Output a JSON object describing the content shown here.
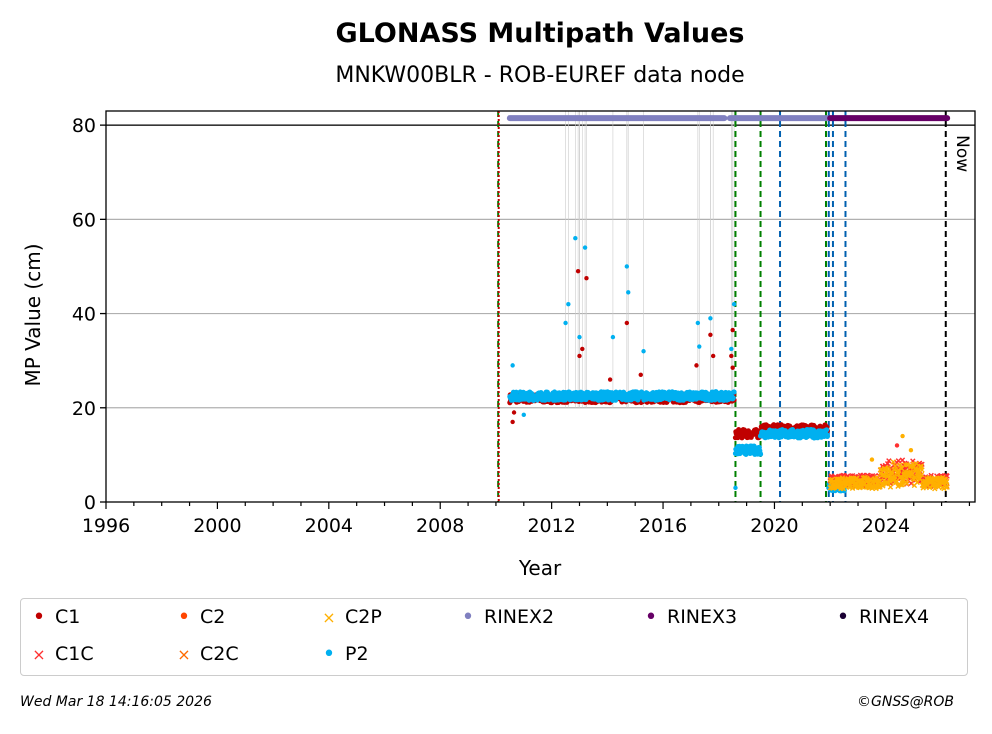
{
  "chart_data": {
    "type": "scatter",
    "title": "GLONASS Multipath Values",
    "subtitle": "MNKW00BLR - ROB-EUREF data node",
    "xlabel": "Year",
    "ylabel": "MP Value (cm)",
    "xlim": [
      1996,
      2027.2
    ],
    "ylim": [
      0,
      83
    ],
    "x_ticks": [
      "1996",
      "2000",
      "2004",
      "2008",
      "2012",
      "2016",
      "2020",
      "2024"
    ],
    "y_ticks": [
      "0",
      "20",
      "40",
      "60",
      "80"
    ],
    "grid": "horizontal",
    "now_label": "Now",
    "now_year": 2026.2,
    "colors": {
      "C1": "#c00000",
      "C1C": "#ff3030",
      "C2": "#ff4500",
      "C2C": "#ff6a00",
      "C2P": "#ffb000",
      "P2": "#00b0f0",
      "RINEX2": "#8080c0",
      "RINEX3": "#660066",
      "RINEX4": "#1a0033",
      "green_line": "#008000",
      "blue_line": "#0060b0",
      "red_line": "#c00000",
      "grid": "#b0b0b0"
    },
    "format_bars": [
      {
        "format": "RINEX2",
        "start": 2010.5,
        "end": 2018.2
      },
      {
        "format": "RINEX2",
        "start": 2018.4,
        "end": 2021.9
      },
      {
        "format": "RINEX3",
        "start": 2022.0,
        "end": 2026.2
      }
    ],
    "vertical_lines": [
      {
        "x": 2010.08,
        "style": "green"
      },
      {
        "x": 2010.1,
        "style": "red"
      },
      {
        "x": 2018.6,
        "style": "green"
      },
      {
        "x": 2019.5,
        "style": "green"
      },
      {
        "x": 2020.2,
        "style": "blue"
      },
      {
        "x": 2021.85,
        "style": "green"
      },
      {
        "x": 2021.95,
        "style": "blue"
      },
      {
        "x": 2022.1,
        "style": "blue"
      },
      {
        "x": 2022.55,
        "style": "blue"
      },
      {
        "x": 2026.15,
        "style": "now"
      }
    ],
    "series": [
      {
        "name": "C1",
        "segments": [
          {
            "start": 2010.5,
            "end": 2018.55,
            "value": 22
          },
          {
            "start": 2018.6,
            "end": 2019.5,
            "value": 14.5
          },
          {
            "start": 2019.5,
            "end": 2021.9,
            "value": 15.5
          }
        ]
      },
      {
        "name": "P2",
        "segments": [
          {
            "start": 2010.5,
            "end": 2018.55,
            "value": 22.5
          },
          {
            "start": 2018.6,
            "end": 2019.5,
            "value": 11
          },
          {
            "start": 2019.5,
            "end": 2021.9,
            "value": 14.5
          },
          {
            "start": 2021.95,
            "end": 2022.55,
            "value": 3
          }
        ]
      },
      {
        "name": "C1C",
        "segments": [
          {
            "start": 2022.0,
            "end": 2026.2,
            "value": 4.5
          }
        ]
      },
      {
        "name": "C2P",
        "segments": [
          {
            "start": 2022.0,
            "end": 2026.2,
            "value": 4
          }
        ]
      }
    ],
    "outliers": [
      {
        "series": "P2",
        "x": 2012.85,
        "y": 56
      },
      {
        "series": "P2",
        "x": 2013.2,
        "y": 54
      },
      {
        "series": "C1",
        "x": 2012.95,
        "y": 49
      },
      {
        "series": "C1",
        "x": 2013.25,
        "y": 47.5
      },
      {
        "series": "P2",
        "x": 2014.7,
        "y": 50
      },
      {
        "series": "P2",
        "x": 2014.75,
        "y": 44.5
      },
      {
        "series": "P2",
        "x": 2012.6,
        "y": 42
      },
      {
        "series": "C1",
        "x": 2014.7,
        "y": 38
      },
      {
        "series": "P2",
        "x": 2012.5,
        "y": 38
      },
      {
        "series": "P2",
        "x": 2013.0,
        "y": 35
      },
      {
        "series": "C1",
        "x": 2013.0,
        "y": 31
      },
      {
        "series": "C1",
        "x": 2013.1,
        "y": 32.5
      },
      {
        "series": "P2",
        "x": 2014.2,
        "y": 35
      },
      {
        "series": "C1",
        "x": 2014.1,
        "y": 26
      },
      {
        "series": "P2",
        "x": 2015.3,
        "y": 32
      },
      {
        "series": "C1",
        "x": 2015.2,
        "y": 27
      },
      {
        "series": "P2",
        "x": 2017.25,
        "y": 38
      },
      {
        "series": "P2",
        "x": 2017.7,
        "y": 39
      },
      {
        "series": "C1",
        "x": 2017.7,
        "y": 35.5
      },
      {
        "series": "C1",
        "x": 2017.8,
        "y": 31
      },
      {
        "series": "P2",
        "x": 2017.3,
        "y": 33
      },
      {
        "series": "C1",
        "x": 2017.2,
        "y": 29
      },
      {
        "series": "P2",
        "x": 2018.55,
        "y": 42
      },
      {
        "series": "C1",
        "x": 2018.5,
        "y": 36.5
      },
      {
        "series": "C1",
        "x": 2018.45,
        "y": 31
      },
      {
        "series": "P2",
        "x": 2018.45,
        "y": 32.5
      },
      {
        "series": "C1",
        "x": 2018.5,
        "y": 28.5
      },
      {
        "series": "P2",
        "x": 2018.6,
        "y": 3
      },
      {
        "series": "C1",
        "x": 2010.6,
        "y": 17
      },
      {
        "series": "C1",
        "x": 2010.65,
        "y": 19
      },
      {
        "series": "P2",
        "x": 2010.6,
        "y": 29
      },
      {
        "series": "P2",
        "x": 2011.0,
        "y": 18.5
      },
      {
        "series": "C2P",
        "x": 2024.6,
        "y": 14
      },
      {
        "series": "C1C",
        "x": 2024.4,
        "y": 12
      },
      {
        "series": "C2P",
        "x": 2023.5,
        "y": 9
      },
      {
        "series": "C2P",
        "x": 2024.9,
        "y": 11
      }
    ]
  },
  "legend": [
    {
      "key": "C1",
      "label": "C1",
      "marker": "•",
      "color": "#c00000"
    },
    {
      "key": "C2",
      "label": "C2",
      "marker": "•",
      "color": "#ff4500"
    },
    {
      "key": "C2P",
      "label": "C2P",
      "marker": "×",
      "color": "#ffb000"
    },
    {
      "key": "RINEX2",
      "label": "RINEX2",
      "marker": "•",
      "color": "#8080c0"
    },
    {
      "key": "RINEX3",
      "label": "RINEX3",
      "marker": "•",
      "color": "#660066"
    },
    {
      "key": "RINEX4",
      "label": "RINEX4",
      "marker": "•",
      "color": "#1a0033"
    },
    {
      "key": "C1C",
      "label": "C1C",
      "marker": "×",
      "color": "#ff3030"
    },
    {
      "key": "C2C",
      "label": "C2C",
      "marker": "×",
      "color": "#ff6a00"
    },
    {
      "key": "P2",
      "label": "P2",
      "marker": "•",
      "color": "#00b0f0"
    }
  ],
  "footer": {
    "timestamp": "Wed Mar 18 14:16:05 2026",
    "credit": "©GNSS@ROB"
  }
}
